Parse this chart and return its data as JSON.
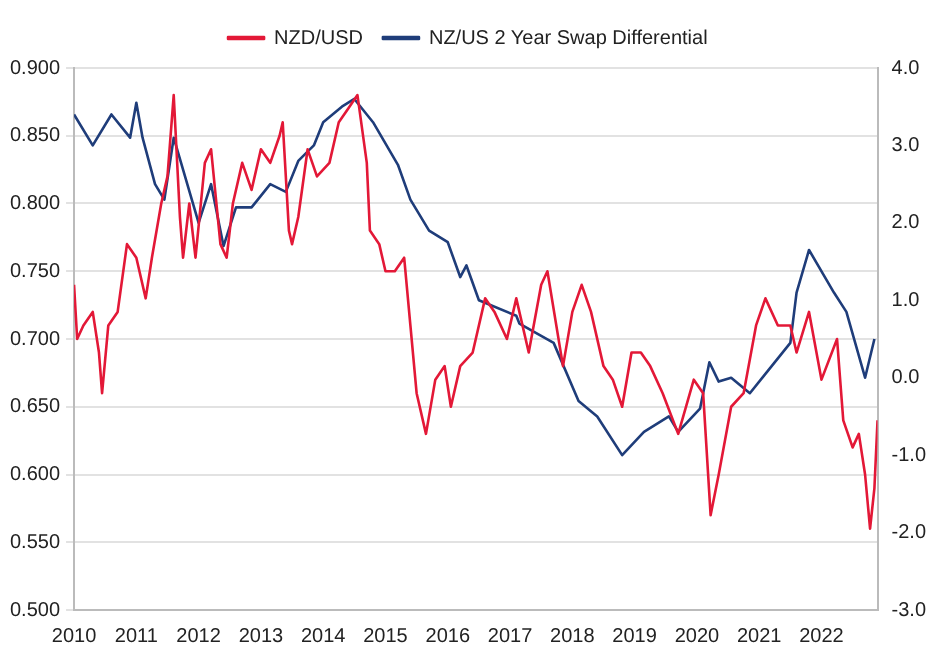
{
  "chart_data": {
    "type": "line",
    "legend": "top",
    "grid": "y",
    "marker": "none",
    "line_style": "solid",
    "xlim": [
      2010,
      2022.9
    ],
    "xticks": [
      2010,
      2011,
      2012,
      2013,
      2014,
      2015,
      2016,
      2017,
      2018,
      2019,
      2020,
      2021,
      2022
    ],
    "ylim": [
      0.5,
      0.9
    ],
    "yticks": [
      {
        "value": 0.5,
        "label": "0.500"
      },
      {
        "value": 0.55,
        "label": "0.550"
      },
      {
        "value": 0.6,
        "label": "0.600"
      },
      {
        "value": 0.65,
        "label": "0.650"
      },
      {
        "value": 0.7,
        "label": "0.700"
      },
      {
        "value": 0.75,
        "label": "0.750"
      },
      {
        "value": 0.8,
        "label": "0.800"
      },
      {
        "value": 0.85,
        "label": "0.850"
      },
      {
        "value": 0.9,
        "label": "0.900"
      }
    ],
    "y2lim": [
      -3,
      4
    ],
    "y2ticks": [
      {
        "value": -3,
        "label": "-3.0"
      },
      {
        "value": -2,
        "label": "-2.0"
      },
      {
        "value": -1,
        "label": "-1.0"
      },
      {
        "value": 0,
        "label": "0.0"
      },
      {
        "value": 1,
        "label": "1.0"
      },
      {
        "value": 2,
        "label": "2.0"
      },
      {
        "value": 3,
        "label": "3.0"
      },
      {
        "value": 4,
        "label": "4.0"
      }
    ],
    "series": [
      {
        "name": "NZD/USD",
        "color": "#e31837",
        "x": [
          2010.0,
          2010.05,
          2010.15,
          2010.3,
          2010.4,
          2010.45,
          2010.55,
          2010.7,
          2010.85,
          2011.0,
          2011.15,
          2011.25,
          2011.4,
          2011.5,
          2011.6,
          2011.7,
          2011.75,
          2011.85,
          2011.95,
          2012.1,
          2012.2,
          2012.35,
          2012.45,
          2012.55,
          2012.7,
          2012.85,
          2013.0,
          2013.15,
          2013.3,
          2013.35,
          2013.45,
          2013.5,
          2013.6,
          2013.75,
          2013.9,
          2014.1,
          2014.25,
          2014.4,
          2014.55,
          2014.7,
          2014.75,
          2014.9,
          2015.0,
          2015.15,
          2015.3,
          2015.4,
          2015.5,
          2015.65,
          2015.8,
          2015.95,
          2016.05,
          2016.2,
          2016.4,
          2016.6,
          2016.75,
          2016.95,
          2017.1,
          2017.3,
          2017.5,
          2017.6,
          2017.85,
          2018.0,
          2018.15,
          2018.3,
          2018.5,
          2018.65,
          2018.8,
          2018.95,
          2019.1,
          2019.25,
          2019.45,
          2019.7,
          2019.95,
          2020.1,
          2020.22,
          2020.35,
          2020.55,
          2020.75,
          2020.95,
          2021.1,
          2021.3,
          2021.5,
          2021.6,
          2021.8,
          2022.0,
          2022.25,
          2022.35,
          2022.5,
          2022.6,
          2022.7,
          2022.78,
          2022.85,
          2022.9
        ],
        "values": [
          0.74,
          0.7,
          0.71,
          0.72,
          0.69,
          0.66,
          0.71,
          0.72,
          0.77,
          0.76,
          0.73,
          0.76,
          0.8,
          0.82,
          0.88,
          0.79,
          0.76,
          0.8,
          0.76,
          0.83,
          0.84,
          0.77,
          0.76,
          0.8,
          0.83,
          0.81,
          0.84,
          0.83,
          0.85,
          0.86,
          0.78,
          0.77,
          0.79,
          0.84,
          0.82,
          0.83,
          0.86,
          0.87,
          0.88,
          0.83,
          0.78,
          0.77,
          0.75,
          0.75,
          0.76,
          0.71,
          0.66,
          0.63,
          0.67,
          0.68,
          0.65,
          0.68,
          0.69,
          0.73,
          0.72,
          0.7,
          0.73,
          0.69,
          0.74,
          0.75,
          0.68,
          0.72,
          0.74,
          0.72,
          0.68,
          0.67,
          0.65,
          0.69,
          0.69,
          0.68,
          0.66,
          0.63,
          0.67,
          0.66,
          0.57,
          0.6,
          0.65,
          0.66,
          0.71,
          0.73,
          0.71,
          0.71,
          0.69,
          0.72,
          0.67,
          0.7,
          0.64,
          0.62,
          0.63,
          0.6,
          0.56,
          0.59,
          0.64
        ]
      },
      {
        "name": "NZ/US 2 Year Swap Differential",
        "color": "#1f3d7a",
        "axis": "y2",
        "x": [
          2010.0,
          2010.3,
          2010.6,
          2010.9,
          2011.0,
          2011.1,
          2011.3,
          2011.45,
          2011.6,
          2012.0,
          2012.2,
          2012.4,
          2012.6,
          2012.85,
          2013.15,
          2013.4,
          2013.6,
          2013.85,
          2014.0,
          2014.3,
          2014.5,
          2014.8,
          2015.2,
          2015.4,
          2015.7,
          2016.0,
          2016.2,
          2016.3,
          2016.5,
          2017.1,
          2017.15,
          2017.7,
          2018.1,
          2018.4,
          2018.8,
          2019.15,
          2019.55,
          2019.7,
          2020.05,
          2020.2,
          2020.35,
          2020.55,
          2020.85,
          2021.2,
          2021.5,
          2021.6,
          2021.8,
          2022.2,
          2022.4,
          2022.7,
          2022.85
        ],
        "values": [
          3.4,
          3.0,
          3.4,
          3.1,
          3.55,
          3.1,
          2.5,
          2.3,
          3.1,
          2.0,
          2.5,
          1.7,
          2.2,
          2.2,
          2.5,
          2.4,
          2.8,
          3.0,
          3.3,
          3.5,
          3.6,
          3.3,
          2.75,
          2.3,
          1.9,
          1.75,
          1.3,
          1.45,
          1.0,
          0.8,
          0.7,
          0.45,
          -0.3,
          -0.5,
          -1.0,
          -0.7,
          -0.5,
          -0.7,
          -0.4,
          0.2,
          -0.05,
          0.0,
          -0.2,
          0.15,
          0.45,
          1.1,
          1.65,
          1.1,
          0.85,
          0.0,
          0.5
        ]
      }
    ]
  }
}
